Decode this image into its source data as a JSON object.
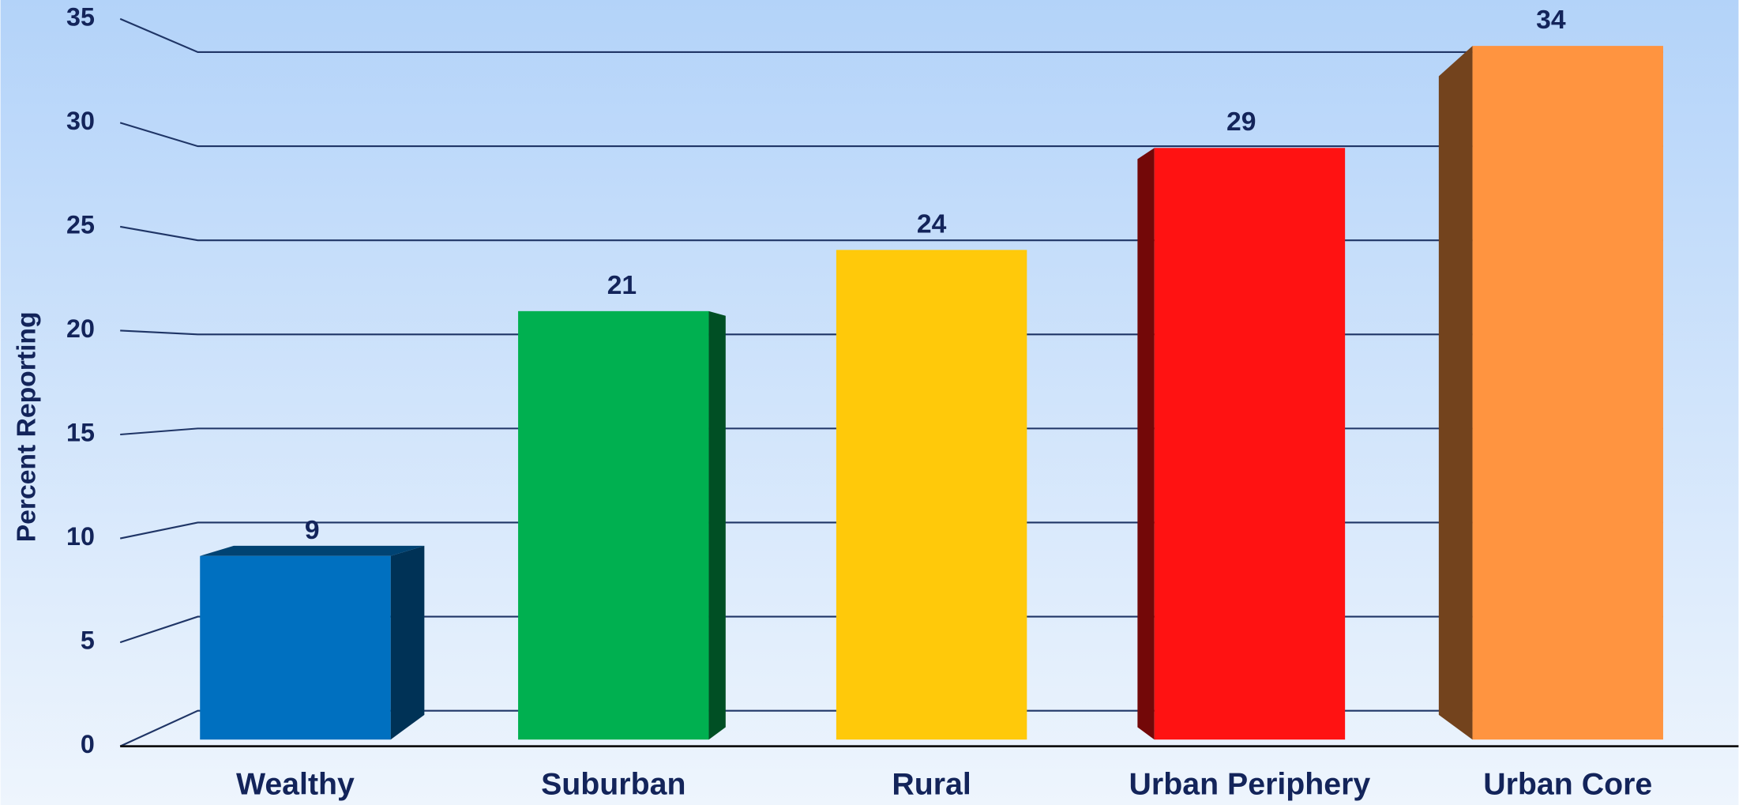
{
  "chart_data": {
    "type": "bar3d",
    "y_axis_label": "Percent Reporting",
    "categories": [
      "Wealthy",
      "Suburban",
      "Rural",
      "Urban Periphery",
      "Urban Core"
    ],
    "values": [
      9,
      21,
      24,
      29,
      34
    ],
    "colors": [
      "#0070c0",
      "#00b050",
      "#ffc90a",
      "#ff1212",
      "#ff9440"
    ],
    "ylim": [
      0,
      35
    ],
    "yticks": [
      0,
      5,
      10,
      15,
      20,
      25,
      30,
      35
    ],
    "grid": true
  }
}
